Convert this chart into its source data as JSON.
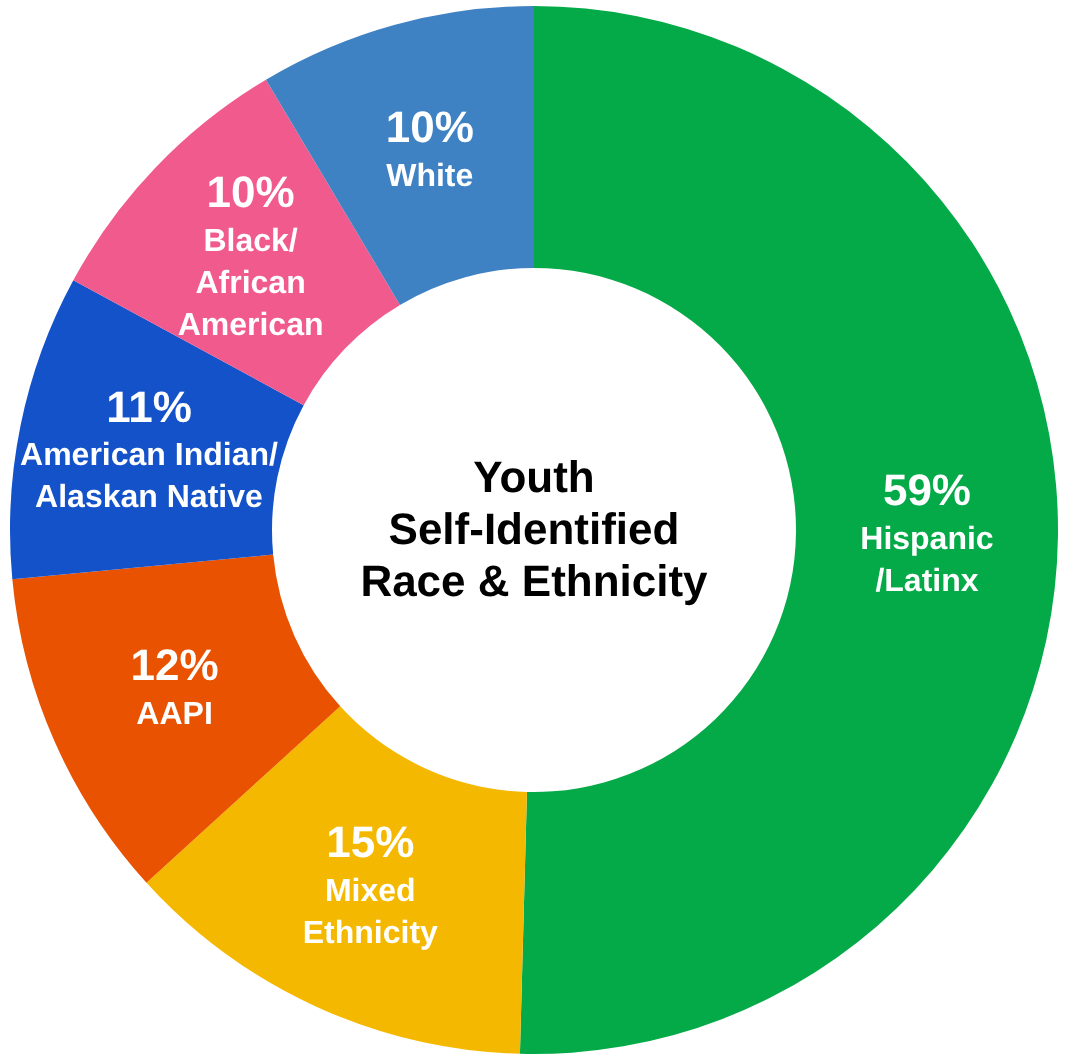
{
  "chart_data": {
    "type": "donut",
    "title": "Youth\nSelf-Identified\nRace & Ethnicity",
    "categories": [
      "Hispanic\n/Latinx",
      "Mixed\nEthnicity",
      "AAPI",
      "American Indian/\nAlaskan Native",
      "Black/\nAfrican\nAmerican",
      "White"
    ],
    "values": [
      59,
      15,
      12,
      11,
      10,
      10
    ],
    "colors": [
      "#05aa48",
      "#f5b800",
      "#e95200",
      "#1452c9",
      "#f05a8c",
      "#3f82c4"
    ],
    "value_labels": [
      "59%",
      "15%",
      "12%",
      "11%",
      "10%",
      "10%"
    ],
    "legend": false
  }
}
